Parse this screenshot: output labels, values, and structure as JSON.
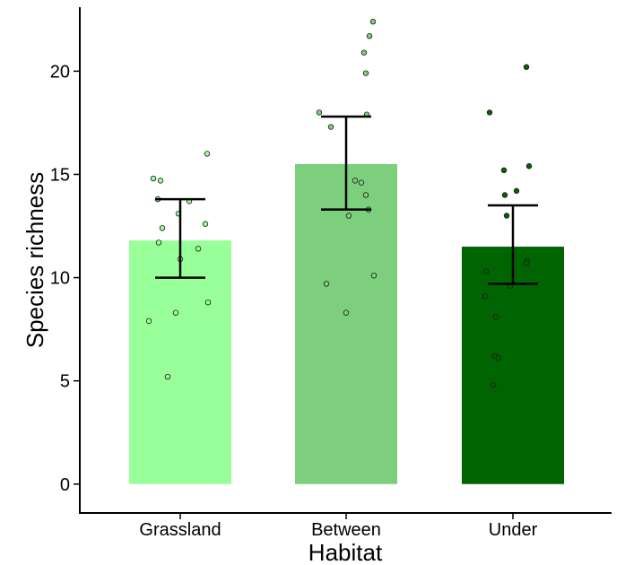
{
  "chart_data": {
    "type": "bar",
    "title": "",
    "xlabel": "Habitat",
    "ylabel": "Species richness",
    "ylim": [
      -1.4,
      23.1
    ],
    "yticks": [
      0,
      5,
      10,
      15,
      20
    ],
    "grid": false,
    "legend": "none",
    "categories": [
      "Grassland",
      "Between",
      "Under"
    ],
    "values": [
      11.8,
      15.5,
      11.5
    ],
    "error_low": [
      10.0,
      13.3,
      9.7
    ],
    "error_high": [
      13.8,
      17.8,
      13.5
    ],
    "colors": [
      "#99ff99",
      "#7dcf7d",
      "#006400"
    ],
    "points": [
      [
        16.0,
        14.8,
        14.7,
        13.8,
        13.7,
        13.1,
        12.6,
        12.4,
        11.7,
        11.4,
        10.9,
        8.8,
        8.3,
        7.9,
        5.2
      ],
      [
        22.4,
        21.7,
        20.9,
        19.9,
        18.0,
        17.9,
        17.3,
        14.7,
        14.6,
        14.0,
        13.3,
        13.0,
        10.1,
        9.7,
        8.3
      ],
      [
        20.2,
        18.0,
        15.4,
        15.2,
        14.2,
        14.0,
        13.0,
        10.8,
        10.7,
        10.3,
        9.6,
        9.1,
        8.1,
        6.2,
        6.1,
        4.8
      ]
    ]
  }
}
